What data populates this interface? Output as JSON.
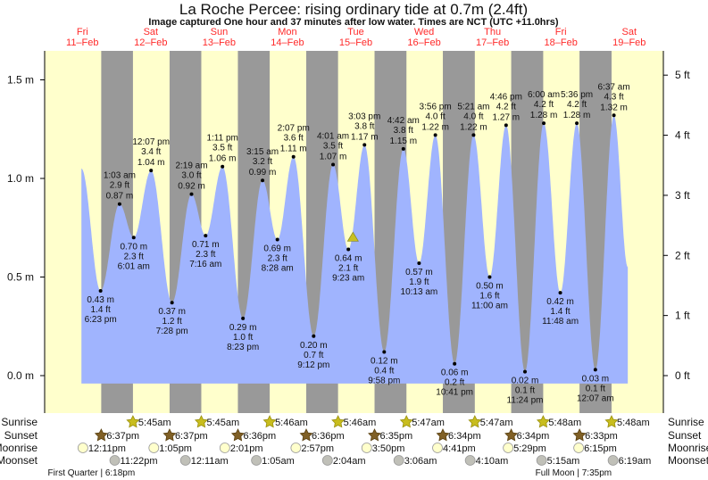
{
  "chart_data": {
    "type": "area",
    "title": "La Roche Percee: rising  ordinary tide at 0.7m (2.4ft)",
    "subtitle": "Image captured One hour and 37 minutes after low water. Times are NCT (UTC +11.0hrs)",
    "days": [
      {
        "name": "Fri",
        "date": "11–Feb"
      },
      {
        "name": "Sat",
        "date": "12–Feb"
      },
      {
        "name": "Sun",
        "date": "13–Feb"
      },
      {
        "name": "Mon",
        "date": "14–Feb"
      },
      {
        "name": "Tue",
        "date": "15–Feb"
      },
      {
        "name": "Wed",
        "date": "16–Feb"
      },
      {
        "name": "Thu",
        "date": "17–Feb"
      },
      {
        "name": "Fri",
        "date": "18–Feb"
      },
      {
        "name": "Sat",
        "date": "19–Feb"
      }
    ],
    "y_left": {
      "unit": "m",
      "range": [
        -0.1,
        1.65
      ],
      "ticks": [
        "0.0 m",
        "0.5 m",
        "1.0 m",
        "1.5 m"
      ],
      "tick_values": [
        0,
        0.5,
        1.0,
        1.5
      ]
    },
    "y_right": {
      "unit": "ft",
      "ticks": [
        "0 ft",
        "1 ft",
        "2 ft",
        "3 ft",
        "4 ft",
        "5 ft"
      ],
      "tick_values": [
        0,
        1,
        2,
        3,
        4,
        5
      ]
    },
    "curve_start": {
      "day": 0,
      "time": "11:40am",
      "m": 1.05
    },
    "curve_end": {
      "day": 8,
      "time": "11:30am",
      "m": 0.55
    },
    "extremes": [
      {
        "day": 0,
        "time": "6:23 pm",
        "m": "0.43 m",
        "ft": "1.4 ft",
        "v": 0.43,
        "type": "low"
      },
      {
        "day": 1,
        "time": "1:03 am",
        "m": "0.87 m",
        "ft": "2.9 ft",
        "v": 0.87,
        "type": "high"
      },
      {
        "day": 1,
        "time": "6:01 am",
        "m": "0.70 m",
        "ft": "2.3 ft",
        "v": 0.7,
        "type": "low"
      },
      {
        "day": 1,
        "time": "12:07 pm",
        "m": "1.04 m",
        "ft": "3.4 ft",
        "v": 1.04,
        "type": "high"
      },
      {
        "day": 1,
        "time": "7:28 pm",
        "m": "0.37 m",
        "ft": "1.2 ft",
        "v": 0.37,
        "type": "low"
      },
      {
        "day": 2,
        "time": "2:19 am",
        "m": "0.92 m",
        "ft": "3.0 ft",
        "v": 0.92,
        "type": "high"
      },
      {
        "day": 2,
        "time": "7:16 am",
        "m": "0.71 m",
        "ft": "2.3 ft",
        "v": 0.71,
        "type": "low"
      },
      {
        "day": 2,
        "time": "1:11 pm",
        "m": "1.06 m",
        "ft": "3.5 ft",
        "v": 1.06,
        "type": "high"
      },
      {
        "day": 2,
        "time": "8:23 pm",
        "m": "0.29 m",
        "ft": "1.0 ft",
        "v": 0.29,
        "type": "low"
      },
      {
        "day": 3,
        "time": "3:15 am",
        "m": "0.99 m",
        "ft": "3.2 ft",
        "v": 0.99,
        "type": "high"
      },
      {
        "day": 3,
        "time": "8:28 am",
        "m": "0.69 m",
        "ft": "2.3 ft",
        "v": 0.69,
        "type": "low"
      },
      {
        "day": 3,
        "time": "2:07 pm",
        "m": "1.11 m",
        "ft": "3.6 ft",
        "v": 1.11,
        "type": "high"
      },
      {
        "day": 3,
        "time": "9:12 pm",
        "m": "0.20 m",
        "ft": "0.7 ft",
        "v": 0.2,
        "type": "low"
      },
      {
        "day": 4,
        "time": "4:01 am",
        "m": "1.07 m",
        "ft": "3.5 ft",
        "v": 1.07,
        "type": "high"
      },
      {
        "day": 4,
        "time": "9:23 am",
        "m": "0.64 m",
        "ft": "2.1 ft",
        "v": 0.64,
        "type": "low"
      },
      {
        "day": 4,
        "time": "3:03 pm",
        "m": "1.17 m",
        "ft": "3.8 ft",
        "v": 1.17,
        "type": "high"
      },
      {
        "day": 4,
        "time": "9:58 pm",
        "m": "0.12 m",
        "ft": "0.4 ft",
        "v": 0.12,
        "type": "low"
      },
      {
        "day": 5,
        "time": "4:42 am",
        "m": "1.15 m",
        "ft": "3.8 ft",
        "v": 1.15,
        "type": "high"
      },
      {
        "day": 5,
        "time": "10:13 am",
        "m": "0.57 m",
        "ft": "1.9 ft",
        "v": 0.57,
        "type": "low"
      },
      {
        "day": 5,
        "time": "3:56 pm",
        "m": "1.22 m",
        "ft": "4.0 ft",
        "v": 1.22,
        "type": "high"
      },
      {
        "day": 5,
        "time": "10:41 pm",
        "m": "0.06 m",
        "ft": "0.2 ft",
        "v": 0.06,
        "type": "low"
      },
      {
        "day": 6,
        "time": "5:21 am",
        "m": "1.22 m",
        "ft": "4.0 ft",
        "v": 1.22,
        "type": "high"
      },
      {
        "day": 6,
        "time": "11:00 am",
        "m": "0.50 m",
        "ft": "1.6 ft",
        "v": 0.5,
        "type": "low"
      },
      {
        "day": 6,
        "time": "4:46 pm",
        "m": "1.27 m",
        "ft": "4.2 ft",
        "v": 1.27,
        "type": "high"
      },
      {
        "day": 6,
        "time": "11:24 pm",
        "m": "0.02 m",
        "ft": "0.1 ft",
        "v": 0.02,
        "type": "low"
      },
      {
        "day": 7,
        "time": "6:00 am",
        "m": "1.28 m",
        "ft": "4.2 ft",
        "v": 1.28,
        "type": "high"
      },
      {
        "day": 7,
        "time": "11:48 am",
        "m": "0.42 m",
        "ft": "1.4 ft",
        "v": 0.42,
        "type": "low"
      },
      {
        "day": 7,
        "time": "5:36 pm",
        "m": "1.28 m",
        "ft": "4.2 ft",
        "v": 1.28,
        "type": "high"
      },
      {
        "day": 8,
        "time": "12:07 am",
        "m": "0.03 m",
        "ft": "0.1 ft",
        "v": 0.03,
        "type": "low"
      },
      {
        "day": 8,
        "time": "6:37 am",
        "m": "1.32 m",
        "ft": "4.3 ft",
        "v": 1.32,
        "type": "high"
      }
    ],
    "current": {
      "day": 4,
      "time": "11:00am",
      "m": 0.7,
      "state": "rising"
    },
    "rows": {
      "sunrise_label": "Sunrise",
      "sunset_label": "Sunset",
      "moonrise_label": "Moonrise",
      "moonset_label": "Moonset",
      "sunrise": [
        {
          "day": 1,
          "time": "5:45am"
        },
        {
          "day": 2,
          "time": "5:45am"
        },
        {
          "day": 3,
          "time": "5:46am"
        },
        {
          "day": 4,
          "time": "5:46am"
        },
        {
          "day": 5,
          "time": "5:47am"
        },
        {
          "day": 6,
          "time": "5:47am"
        },
        {
          "day": 7,
          "time": "5:48am"
        },
        {
          "day": 8,
          "time": "5:48am"
        }
      ],
      "sunset": [
        {
          "day": 0,
          "time": "6:37pm"
        },
        {
          "day": 1,
          "time": "6:37pm"
        },
        {
          "day": 2,
          "time": "6:36pm"
        },
        {
          "day": 3,
          "time": "6:36pm"
        },
        {
          "day": 4,
          "time": "6:35pm"
        },
        {
          "day": 5,
          "time": "6:34pm"
        },
        {
          "day": 6,
          "time": "6:34pm"
        },
        {
          "day": 7,
          "time": "6:33pm"
        }
      ],
      "moonrise": [
        {
          "day": 0,
          "time": "12:11pm"
        },
        {
          "day": 1,
          "time": "1:05pm"
        },
        {
          "day": 2,
          "time": "2:01pm"
        },
        {
          "day": 3,
          "time": "2:57pm"
        },
        {
          "day": 4,
          "time": "3:50pm"
        },
        {
          "day": 5,
          "time": "4:41pm"
        },
        {
          "day": 6,
          "time": "5:29pm"
        },
        {
          "day": 7,
          "time": "6:15pm"
        }
      ],
      "moonset": [
        {
          "day": 0,
          "time": "11:22pm"
        },
        {
          "day": 2,
          "time": "12:11am"
        },
        {
          "day": 3,
          "time": "1:05am"
        },
        {
          "day": 4,
          "time": "2:04am"
        },
        {
          "day": 5,
          "time": "3:06am"
        },
        {
          "day": 6,
          "time": "4:10am"
        },
        {
          "day": 7,
          "time": "5:15am"
        },
        {
          "day": 8,
          "time": "6:19am"
        }
      ],
      "phases": [
        {
          "day": 0,
          "time": "6:18pm",
          "label": "First Quarter | 6:18pm"
        },
        {
          "day": 7,
          "time": "7:35pm",
          "label": "Full Moon | 7:35pm"
        }
      ]
    },
    "colors": {
      "day": "#ffffcc",
      "night": "#999999",
      "water": "#a0b4fe",
      "day_label": "#ff2a2a",
      "sunrise": "#c8bd1e",
      "sunset": "#806026",
      "moonrise": "#ffffcc",
      "moonset": "#c0c0b8",
      "marker": "#c8c020"
    }
  }
}
